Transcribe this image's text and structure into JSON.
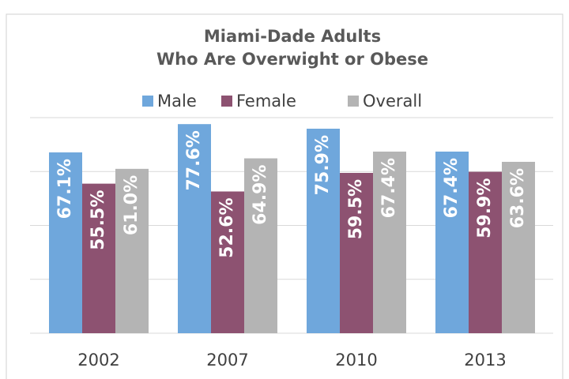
{
  "chart_data": {
    "type": "bar",
    "title": [
      "Miami-Dade Adults",
      "Who Are Overwight or Obese"
    ],
    "categories": [
      "2002",
      "2007",
      "2010",
      "2013"
    ],
    "series": [
      {
        "name": "Male",
        "color": "#6fa7dc",
        "values": [
          67.1,
          77.6,
          75.9,
          67.4
        ],
        "value_labels": [
          "67.1%",
          "77.6%",
          "75.9%",
          "67.4%"
        ]
      },
      {
        "name": "Female",
        "color": "#8d5271",
        "values": [
          55.5,
          52.6,
          59.5,
          59.9
        ],
        "value_labels": [
          "55.5%",
          "52.6%",
          "59.5%",
          "59.9%"
        ]
      },
      {
        "name": "Overall",
        "color": "#b4b4b4",
        "values": [
          61.0,
          64.9,
          67.4,
          63.6
        ],
        "value_labels": [
          "61.0%",
          "64.9%",
          "67.4%",
          "63.6%"
        ]
      }
    ],
    "ylim": [
      0,
      80
    ],
    "yticks": [
      0,
      20,
      40,
      60,
      80
    ],
    "grid": true,
    "legend": "top"
  }
}
